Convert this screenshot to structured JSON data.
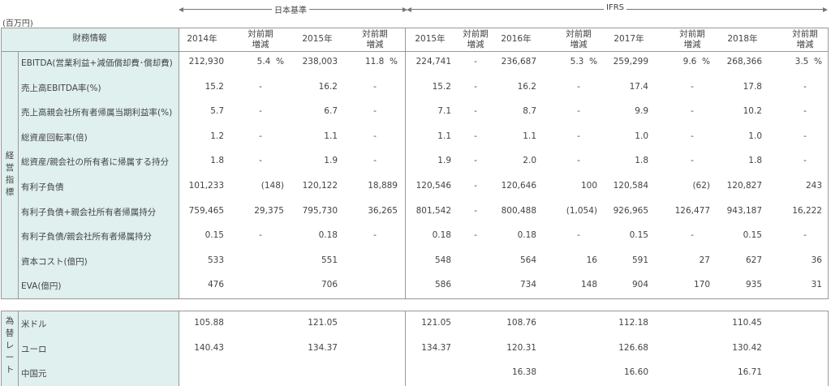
{
  "unit_label": "(百万円)",
  "jgaap_label": "日本基準",
  "ifrs_label": "IFRS",
  "header": {
    "label": "財務情報",
    "cols": [
      "2014年",
      "対前期\n増減",
      "2015年",
      "対前期\n増減",
      "2015年",
      "対前期\n増減",
      "2016年",
      "対前期\n増減",
      "2017年",
      "対前期\n増減",
      "2018年",
      "対前期\n増減"
    ]
  },
  "group1_label": "経\n営\n指\n標",
  "group2_label": "為\n替\nレ\nー\nト",
  "rows": [
    {
      "label": "EBITDA(営業利益+減価償却費･償却費)",
      "v": [
        "212,930",
        "5.4  %",
        "238,003",
        "11.8  %",
        "224,741",
        "-",
        "236,687",
        "5.3  %",
        "259,299",
        "9.6  %",
        "268,366",
        "3.5  %"
      ]
    },
    {
      "label": "売上高EBITDA率(%)",
      "v": [
        "15.2",
        "-",
        "16.2",
        "-",
        "15.2",
        "-",
        "16.2",
        "-",
        "17.4",
        "-",
        "17.8",
        "-"
      ]
    },
    {
      "label": "売上高親会社所有者帰属当期利益率(%)",
      "v": [
        "5.7",
        "-",
        "6.7",
        "-",
        "7.1",
        "-",
        "8.7",
        "-",
        "9.9",
        "-",
        "10.2",
        "-"
      ]
    },
    {
      "label": "総資産回転率(倍)",
      "v": [
        "1.2",
        "-",
        "1.1",
        "-",
        "1.1",
        "-",
        "1.1",
        "-",
        "1.0",
        "-",
        "1.0",
        "-"
      ]
    },
    {
      "label": "総資産/親会社の所有者に帰属する持分",
      "v": [
        "1.8",
        "-",
        "1.9",
        "-",
        "1.9",
        "-",
        "2.0",
        "-",
        "1.8",
        "-",
        "1.8",
        "-"
      ]
    },
    {
      "label": "有利子負債",
      "v": [
        "101,233",
        "(148)",
        "120,122",
        "18,889",
        "120,546",
        "-",
        "120,646",
        "100",
        "120,584",
        "(62)",
        "120,827",
        "243"
      ]
    },
    {
      "label": "有利子負債+親会社所有者帰属持分",
      "v": [
        "759,465",
        "29,375",
        "795,730",
        "36,265",
        "801,542",
        "-",
        "800,488",
        "(1,054)",
        "926,965",
        "126,477",
        "943,187",
        "16,222"
      ]
    },
    {
      "label": "有利子負債/親会社所有者帰属持分",
      "v": [
        "0.15",
        "-",
        "0.18",
        "-",
        "0.18",
        "-",
        "0.18",
        "-",
        "0.15",
        "-",
        "0.15",
        "-"
      ]
    },
    {
      "label": "資本コスト(億円)",
      "v": [
        "533",
        "",
        "551",
        "",
        "548",
        "",
        "564",
        "16",
        "591",
        "27",
        "627",
        "36"
      ]
    },
    {
      "label": "EVA(億円)",
      "v": [
        "476",
        "",
        "706",
        "",
        "586",
        "",
        "734",
        "148",
        "904",
        "170",
        "935",
        "31"
      ]
    }
  ],
  "fx_rows": [
    {
      "label": "米ドル",
      "v": [
        "105.88",
        "",
        "121.05",
        "",
        "121.05",
        "",
        "108.76",
        "",
        "112.18",
        "",
        "110.45",
        ""
      ]
    },
    {
      "label": "ユーロ",
      "v": [
        "140.43",
        "",
        "134.37",
        "",
        "134.37",
        "",
        "120.31",
        "",
        "126.68",
        "",
        "130.42",
        ""
      ]
    },
    {
      "label": "中国元",
      "v": [
        "",
        "",
        "",
        "",
        "",
        "",
        "16.38",
        "",
        "16.60",
        "",
        "16.71",
        ""
      ]
    }
  ]
}
